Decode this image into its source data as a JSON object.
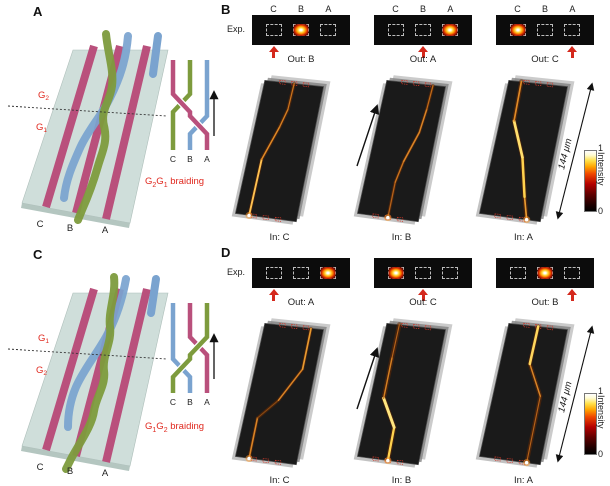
{
  "colors": {
    "waveguide_pink": "#b9507c",
    "waveguide_blue": "#7aa3cf",
    "waveguide_green": "#7d9b3d",
    "slab": "#cfdeda",
    "highlight_red": "#e0281e",
    "input_arrow_red": "#d4281c",
    "facet_black": "#0c0c0c",
    "streak_orange": "#e08a26"
  },
  "panelA": {
    "label": "A",
    "gate_top": {
      "base": "G",
      "sub": "2"
    },
    "gate_bottom": {
      "base": "G",
      "sub": "1"
    },
    "wg_labels": [
      "C",
      "B",
      "A"
    ],
    "braid": {
      "labels": [
        "C",
        "B",
        "A"
      ],
      "caption": {
        "g1": "G",
        "g1sub": "2",
        "g2": "G",
        "g2sub": "1",
        "rest": " braiding"
      }
    }
  },
  "panelC": {
    "label": "C",
    "gate_top": {
      "base": "G",
      "sub": "1"
    },
    "gate_bottom": {
      "base": "G",
      "sub": "2"
    },
    "wg_labels": [
      "C",
      "B",
      "A"
    ],
    "braid": {
      "labels": [
        "C",
        "B",
        "A"
      ],
      "caption": {
        "g1": "G",
        "g1sub": "1",
        "g2": "G",
        "g2sub": "2",
        "rest": " braiding"
      }
    }
  },
  "panelB": {
    "label": "B",
    "exp_label": "Exp.",
    "col_labels": [
      "C",
      "B",
      "A"
    ],
    "scale_label": "144 μm",
    "colorbar": {
      "max": "1",
      "min": "0",
      "title": "Intensity"
    },
    "trials": [
      {
        "in_label": "In: C",
        "out_label": "Out: B",
        "input_index": 0,
        "output_index": 1,
        "streak": {
          "points": [
            [
              21,
              140
            ],
            [
              33,
              86
            ],
            [
              50,
              55
            ],
            [
              58,
              38
            ],
            [
              64,
              13
            ]
          ],
          "colors": [
            "#ffc352",
            "#e08a26",
            "#d47f22",
            "#c9731d"
          ],
          "widths": [
            1.8,
            1.4,
            1.3,
            1.2
          ]
        }
      },
      {
        "in_label": "In: B",
        "out_label": "Out: A",
        "input_index": 1,
        "output_index": 2,
        "streak": {
          "points": [
            [
              37,
              142
            ],
            [
              44,
              108
            ],
            [
              52,
              88
            ],
            [
              67,
              60
            ],
            [
              74,
              38
            ],
            [
              80,
              15
            ]
          ],
          "colors": [
            "#b5621a",
            "#c9731d",
            "#d98426",
            "#d98426",
            "#c06a18"
          ],
          "widths": [
            1.2,
            1.3,
            1.5,
            1.4,
            1.2
          ]
        }
      },
      {
        "in_label": "In: A",
        "out_label": "Out: C",
        "input_index": 2,
        "output_index": 0,
        "streak": {
          "points": [
            [
              53,
              144
            ],
            [
              51,
              122
            ],
            [
              49,
              84
            ],
            [
              41,
              49
            ],
            [
              48,
              11
            ]
          ],
          "colors": [
            "#e89a30",
            "#ffd24e",
            "#ffdf6e",
            "#e08a26"
          ],
          "widths": [
            1.6,
            2.4,
            2.6,
            1.6
          ]
        }
      }
    ]
  },
  "panelD": {
    "label": "D",
    "exp_label": "Exp.",
    "scale_label": "144 μm",
    "colorbar": {
      "max": "1",
      "min": "0",
      "title": "Intensity"
    },
    "trials": [
      {
        "in_label": "In: C",
        "out_label": "Out: A",
        "input_index": 0,
        "output_index": 2,
        "streak": {
          "points": [
            [
              21,
              140
            ],
            [
              29,
              101
            ],
            [
              49,
              84
            ],
            [
              72,
              54
            ],
            [
              80,
              15
            ]
          ],
          "colors": [
            "#d98426",
            "#8a4a12",
            "#d98426",
            "#e89a30"
          ],
          "widths": [
            1.5,
            1.0,
            1.4,
            1.6
          ]
        }
      },
      {
        "in_label": "In: B",
        "out_label": "Out: C",
        "input_index": 1,
        "output_index": 0,
        "streak": {
          "points": [
            [
              37,
              142
            ],
            [
              43,
              110
            ],
            [
              33,
              82
            ],
            [
              41,
              43
            ],
            [
              48,
              11
            ]
          ],
          "colors": [
            "#ffd24e",
            "#ffe680",
            "#d47f22",
            "#b5621a"
          ],
          "widths": [
            2.2,
            2.8,
            1.4,
            1.1
          ]
        }
      },
      {
        "in_label": "In: A",
        "out_label": "Out: B",
        "input_index": 2,
        "output_index": 1,
        "streak": {
          "points": [
            [
              53,
              144
            ],
            [
              66,
              80
            ],
            [
              56,
              49
            ],
            [
              64,
              13
            ]
          ],
          "colors": [
            "#b5621a",
            "#d98426",
            "#ffd75e"
          ],
          "widths": [
            1.1,
            1.4,
            2.4
          ]
        }
      }
    ]
  }
}
